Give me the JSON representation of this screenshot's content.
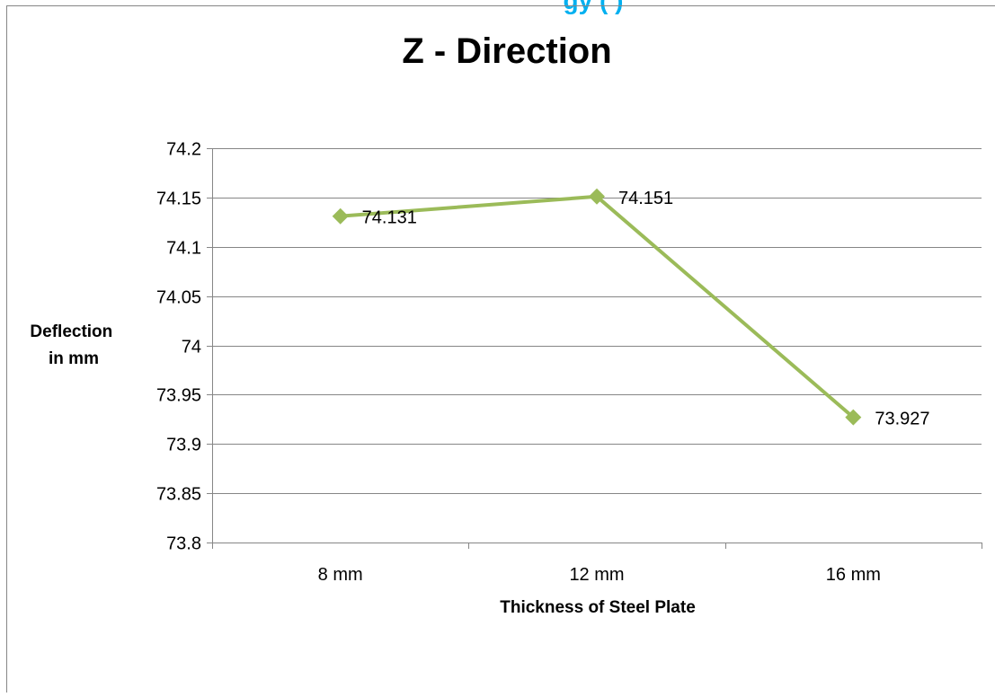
{
  "chart_data": {
    "type": "line",
    "title": "Z - Direction",
    "xlabel": "Thickness of Steel Plate",
    "ylabel_lines": [
      "Deflection",
      "in mm"
    ],
    "categories": [
      "8 mm",
      "12 mm",
      "16 mm"
    ],
    "series": [
      {
        "values": [
          74.131,
          74.151,
          73.927
        ],
        "data_labels": [
          "74.131",
          "74.151",
          "73.927"
        ],
        "color": "#9bbb59"
      }
    ],
    "ylim": [
      73.8,
      74.2
    ],
    "yticks": [
      "73.8",
      "73.85",
      "73.9",
      "73.95",
      "74",
      "74.05",
      "74.1",
      "74.15",
      "74.2"
    ],
    "grid": true,
    "legend": "none"
  },
  "colors": {
    "series_line": "#9bbb59",
    "gridline": "#868686",
    "frame_border": "#868686",
    "header_text": "#00b0f0"
  },
  "header_fragment": "gy (  )"
}
